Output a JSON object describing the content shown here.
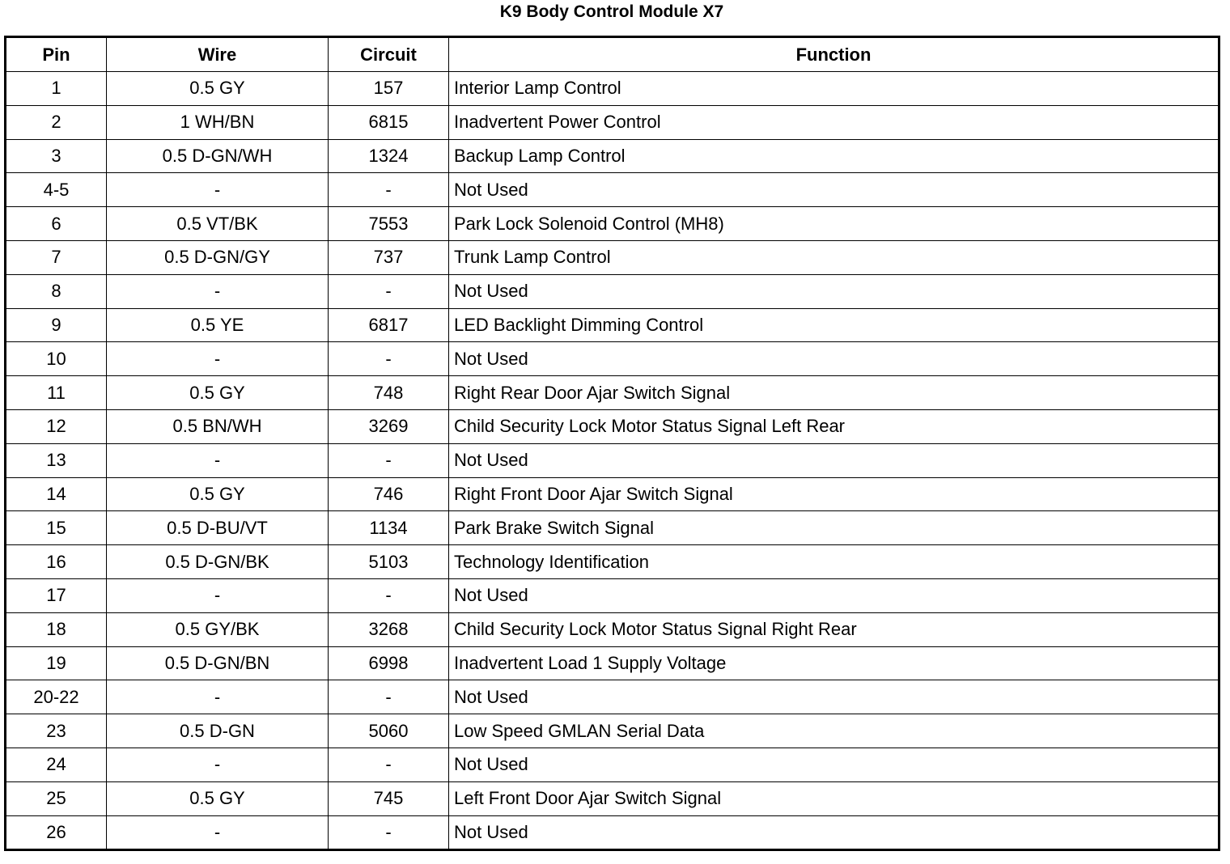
{
  "title": "K9 Body Control Module X7",
  "headers": [
    "Pin",
    "Wire",
    "Circuit",
    "Function"
  ],
  "rows": [
    [
      "1",
      "0.5 GY",
      "157",
      "Interior Lamp Control"
    ],
    [
      "2",
      "1 WH/BN",
      "6815",
      "Inadvertent Power Control"
    ],
    [
      "3",
      "0.5 D-GN/WH",
      "1324",
      "Backup Lamp Control"
    ],
    [
      "4-5",
      "-",
      "-",
      "Not Used"
    ],
    [
      "6",
      "0.5 VT/BK",
      "7553",
      "Park Lock Solenoid Control (MH8)"
    ],
    [
      "7",
      "0.5 D-GN/GY",
      "737",
      "Trunk Lamp Control"
    ],
    [
      "8",
      "-",
      "-",
      "Not Used"
    ],
    [
      "9",
      "0.5 YE",
      "6817",
      "LED Backlight Dimming Control"
    ],
    [
      "10",
      "-",
      "-",
      "Not Used"
    ],
    [
      "11",
      "0.5 GY",
      "748",
      "Right Rear Door Ajar Switch Signal"
    ],
    [
      "12",
      "0.5 BN/WH",
      "3269",
      "Child Security Lock Motor Status Signal Left Rear"
    ],
    [
      "13",
      "-",
      "-",
      "Not Used"
    ],
    [
      "14",
      "0.5 GY",
      "746",
      "Right Front Door Ajar Switch Signal"
    ],
    [
      "15",
      "0.5 D-BU/VT",
      "1134",
      "Park Brake Switch Signal"
    ],
    [
      "16",
      "0.5 D-GN/BK",
      "5103",
      "Technology Identification"
    ],
    [
      "17",
      "-",
      "-",
      "Not Used"
    ],
    [
      "18",
      "0.5 GY/BK",
      "3268",
      "Child Security Lock Motor Status Signal Right Rear"
    ],
    [
      "19",
      "0.5 D-GN/BN",
      "6998",
      "Inadvertent Load 1 Supply Voltage"
    ],
    [
      "20-22",
      "-",
      "-",
      "Not Used"
    ],
    [
      "23",
      "0.5 D-GN",
      "5060",
      "Low Speed GMLAN Serial Data"
    ],
    [
      "24",
      "-",
      "-",
      "Not Used"
    ],
    [
      "25",
      "0.5 GY",
      "745",
      "Left Front Door Ajar Switch Signal"
    ],
    [
      "26",
      "-",
      "-",
      "Not Used"
    ]
  ]
}
